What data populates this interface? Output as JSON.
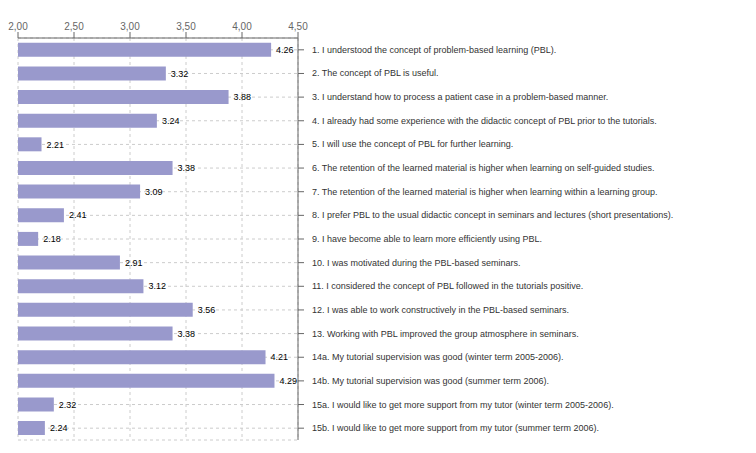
{
  "chart_data": {
    "type": "bar",
    "orientation": "horizontal",
    "categories": [
      "1. I understood the concept of problem-based learning (PBL).",
      "2. The concept of PBL is useful.",
      "3. I understand how to process a patient case in a problem-based manner.",
      "4. I already had some experience with the didactic concept of PBL prior to the tutorials.",
      "5. I will use the concept of PBL for further learning.",
      "6. The retention of the learned material is higher when learning on self-guided studies.",
      "7. The retention of the learned material is higher when learning within a learning group.",
      "8. I prefer PBL to the usual didactic concept in seminars and lectures (short presentations).",
      "9. I have become able to learn more efficiently using PBL.",
      "10. I was motivated during the PBL-based seminars.",
      "11. I considered the concept of PBL followed in the tutorials positive.",
      "12. I was able to work constructively in the PBL-based seminars.",
      "13. Working with PBL improved the group atmosphere in seminars.",
      "14a. My tutorial supervision was good (winter term 2005-2006).",
      "14b. My tutorial supervision was good (summer term 2006).",
      "15a. I would like to get more support from my tutor (winter term 2005-2006).",
      "15b. I would like to get more support from my tutor (summer term 2006)."
    ],
    "values": [
      4.26,
      3.32,
      3.88,
      3.24,
      2.21,
      3.38,
      3.09,
      2.41,
      2.18,
      2.91,
      3.12,
      3.56,
      3.38,
      4.21,
      4.29,
      2.32,
      2.24
    ],
    "color": "#9999CC",
    "xlim": [
      2.0,
      4.5
    ],
    "xticks": [
      {
        "value": 2.0,
        "label": "2,00"
      },
      {
        "value": 2.5,
        "label": "2,50"
      },
      {
        "value": 3.0,
        "label": "3,00"
      },
      {
        "value": 3.5,
        "label": "3,50"
      },
      {
        "value": 4.0,
        "label": "4,00"
      },
      {
        "value": 4.5,
        "label": "4,50"
      }
    ],
    "grid": true,
    "data_labels": true
  }
}
